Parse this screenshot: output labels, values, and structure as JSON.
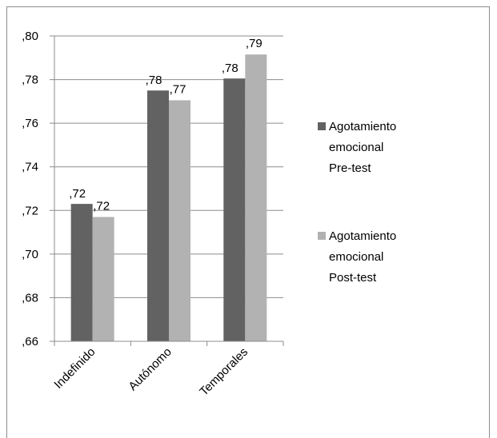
{
  "chart_data": {
    "type": "bar",
    "categories": [
      "Indefinido",
      "Autónomo",
      "Temporales"
    ],
    "series": [
      {
        "name": "Agotamiento emocional Pre-test",
        "values": [
          0.723,
          0.775,
          0.7805
        ],
        "labels": [
          ",72",
          ",78",
          ",78"
        ],
        "color": "#626262"
      },
      {
        "name": "Agotamiento emocional Post-test",
        "values": [
          0.717,
          0.7705,
          0.7915
        ],
        "labels": [
          ",72",
          ",77",
          ",79"
        ],
        "color": "#b2b2b2"
      }
    ],
    "ylim": [
      0.66,
      0.8
    ],
    "yticks": [
      ",66",
      ",68",
      ",70",
      ",72",
      ",74",
      ",76",
      ",78",
      ",80"
    ],
    "grid": true,
    "legend": "right",
    "legend_lines": [
      [
        "Agotamiento",
        "emocional",
        "Pre-test"
      ],
      [
        "Agotamiento",
        "emocional",
        "Post-test"
      ]
    ],
    "title": "",
    "xlabel": "",
    "ylabel": ""
  }
}
